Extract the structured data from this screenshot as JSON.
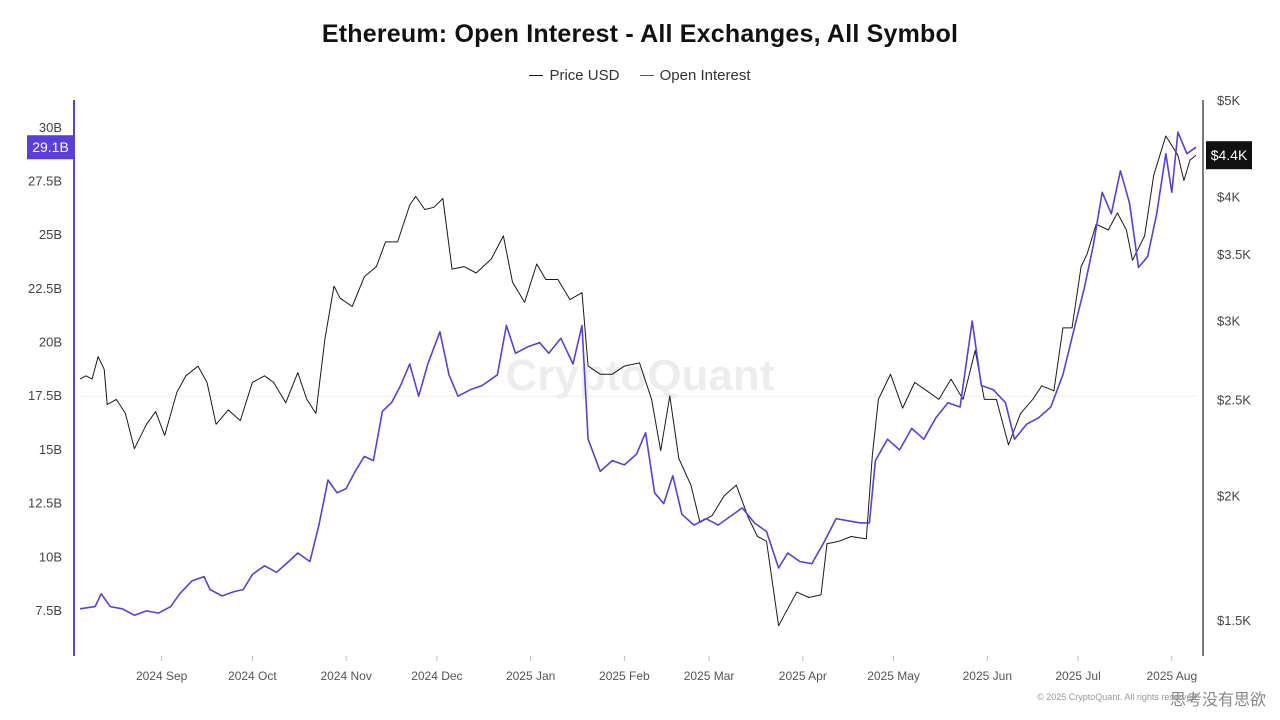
{
  "title": "Ethereum: Open Interest - All Exchanges, All Symbol",
  "watermark": "CryptoQuant",
  "source_text": "© 2025 CryptoQuant. All rights reserved.",
  "corner_badge": "思考没有思欲",
  "colors": {
    "price": "#1a1a1a",
    "oi": "#5a3fd8",
    "axis_left": "#5a3fd8",
    "axis_right": "#222222",
    "badge_dark": "#111111"
  },
  "chart_data": {
    "type": "line",
    "legend": [
      "Price USD",
      "Open Interest"
    ],
    "left_axis": {
      "ticks": [
        "7.5B",
        "10B",
        "12.5B",
        "15B",
        "17.5B",
        "20B",
        "22.5B",
        "25B",
        "27.5B",
        "30B"
      ],
      "tick_values": [
        7.5,
        10,
        12.5,
        15,
        17.5,
        20,
        22.5,
        25,
        27.5,
        30
      ],
      "range": [
        5.4,
        31.3
      ],
      "current_label": "29.1B",
      "current_value": 29.1
    },
    "right_axis": {
      "scale": "log",
      "ticks": [
        "$1.5K",
        "$2K",
        "$2.5K",
        "$3K",
        "$3.5K",
        "$4K",
        "$5K"
      ],
      "tick_values": [
        1500,
        2000,
        2500,
        3000,
        3500,
        4000,
        5000
      ],
      "range": [
        1380,
        5000
      ],
      "current_label": "$4.4K",
      "current_value": 4400
    },
    "x_labels": [
      "2024 Sep",
      "2024 Oct",
      "2024 Nov",
      "2024 Dec",
      "2025 Jan",
      "2025 Feb",
      "2025 Mar",
      "2025 Apr",
      "2025 May",
      "2025 Jun",
      "2025 Jul",
      "2025 Aug"
    ],
    "x_range": [
      "2024-08-19",
      "2025-08-23"
    ],
    "grid": false,
    "legend_position": "top-center",
    "series": [
      {
        "name": "Price USD",
        "axis": "right",
        "points": [
          [
            "2024-08-19",
            2620
          ],
          [
            "2024-08-21",
            2640
          ],
          [
            "2024-08-23",
            2620
          ],
          [
            "2024-08-25",
            2760
          ],
          [
            "2024-08-27",
            2680
          ],
          [
            "2024-08-28",
            2470
          ],
          [
            "2024-08-31",
            2500
          ],
          [
            "2024-09-03",
            2420
          ],
          [
            "2024-09-06",
            2230
          ],
          [
            "2024-09-10",
            2360
          ],
          [
            "2024-09-13",
            2430
          ],
          [
            "2024-09-16",
            2300
          ],
          [
            "2024-09-20",
            2540
          ],
          [
            "2024-09-23",
            2640
          ],
          [
            "2024-09-27",
            2700
          ],
          [
            "2024-09-30",
            2600
          ],
          [
            "2024-10-03",
            2360
          ],
          [
            "2024-10-07",
            2440
          ],
          [
            "2024-10-11",
            2380
          ],
          [
            "2024-10-15",
            2600
          ],
          [
            "2024-10-19",
            2640
          ],
          [
            "2024-10-22",
            2600
          ],
          [
            "2024-10-26",
            2480
          ],
          [
            "2024-10-30",
            2660
          ],
          [
            "2024-11-02",
            2500
          ],
          [
            "2024-11-05",
            2420
          ],
          [
            "2024-11-08",
            2880
          ],
          [
            "2024-11-11",
            3250
          ],
          [
            "2024-11-13",
            3160
          ],
          [
            "2024-11-17",
            3100
          ],
          [
            "2024-11-21",
            3320
          ],
          [
            "2024-11-25",
            3400
          ],
          [
            "2024-11-28",
            3600
          ],
          [
            "2024-12-02",
            3600
          ],
          [
            "2024-12-06",
            3920
          ],
          [
            "2024-12-08",
            4000
          ],
          [
            "2024-12-11",
            3880
          ],
          [
            "2024-12-14",
            3900
          ],
          [
            "2024-12-17",
            3980
          ],
          [
            "2024-12-20",
            3380
          ],
          [
            "2024-12-24",
            3400
          ],
          [
            "2024-12-28",
            3350
          ],
          [
            "2025-01-02",
            3460
          ],
          [
            "2025-01-06",
            3650
          ],
          [
            "2025-01-09",
            3280
          ],
          [
            "2025-01-13",
            3130
          ],
          [
            "2025-01-17",
            3420
          ],
          [
            "2025-01-20",
            3300
          ],
          [
            "2025-01-24",
            3300
          ],
          [
            "2025-01-28",
            3150
          ],
          [
            "2025-02-01",
            3200
          ],
          [
            "2025-02-03",
            2700
          ],
          [
            "2025-02-07",
            2650
          ],
          [
            "2025-02-11",
            2650
          ],
          [
            "2025-02-15",
            2700
          ],
          [
            "2025-02-20",
            2720
          ],
          [
            "2025-02-24",
            2500
          ],
          [
            "2025-02-27",
            2220
          ],
          [
            "2025-03-02",
            2520
          ],
          [
            "2025-03-05",
            2180
          ],
          [
            "2025-03-09",
            2050
          ],
          [
            "2025-03-12",
            1880
          ],
          [
            "2025-03-16",
            1910
          ],
          [
            "2025-03-20",
            2000
          ],
          [
            "2025-03-24",
            2050
          ],
          [
            "2025-03-28",
            1900
          ],
          [
            "2025-03-31",
            1820
          ],
          [
            "2025-04-03",
            1800
          ],
          [
            "2025-04-07",
            1480
          ],
          [
            "2025-04-09",
            1520
          ],
          [
            "2025-04-13",
            1600
          ],
          [
            "2025-04-17",
            1580
          ],
          [
            "2025-04-21",
            1590
          ],
          [
            "2025-04-23",
            1790
          ],
          [
            "2025-04-27",
            1800
          ],
          [
            "2025-05-01",
            1820
          ],
          [
            "2025-05-06",
            1810
          ],
          [
            "2025-05-08",
            2200
          ],
          [
            "2025-05-10",
            2500
          ],
          [
            "2025-05-14",
            2650
          ],
          [
            "2025-05-18",
            2450
          ],
          [
            "2025-05-22",
            2600
          ],
          [
            "2025-05-26",
            2550
          ],
          [
            "2025-05-30",
            2500
          ],
          [
            "2025-06-03",
            2620
          ],
          [
            "2025-06-07",
            2500
          ],
          [
            "2025-06-11",
            2800
          ],
          [
            "2025-06-14",
            2500
          ],
          [
            "2025-06-18",
            2500
          ],
          [
            "2025-06-22",
            2250
          ],
          [
            "2025-06-26",
            2420
          ],
          [
            "2025-06-30",
            2500
          ],
          [
            "2025-07-03",
            2580
          ],
          [
            "2025-07-07",
            2550
          ],
          [
            "2025-07-10",
            2950
          ],
          [
            "2025-07-13",
            2950
          ],
          [
            "2025-07-16",
            3400
          ],
          [
            "2025-07-18",
            3500
          ],
          [
            "2025-07-21",
            3750
          ],
          [
            "2025-07-25",
            3700
          ],
          [
            "2025-07-28",
            3850
          ],
          [
            "2025-07-31",
            3700
          ],
          [
            "2025-08-02",
            3450
          ],
          [
            "2025-08-06",
            3650
          ],
          [
            "2025-08-09",
            4200
          ],
          [
            "2025-08-13",
            4600
          ],
          [
            "2025-08-15",
            4500
          ],
          [
            "2025-08-17",
            4400
          ],
          [
            "2025-08-19",
            4150
          ],
          [
            "2025-08-21",
            4350
          ],
          [
            "2025-08-23",
            4400
          ]
        ]
      },
      {
        "name": "Open Interest",
        "axis": "left",
        "points": [
          [
            "2024-08-19",
            7.6
          ],
          [
            "2024-08-24",
            7.7
          ],
          [
            "2024-08-26",
            8.3
          ],
          [
            "2024-08-29",
            7.7
          ],
          [
            "2024-09-02",
            7.6
          ],
          [
            "2024-09-06",
            7.3
          ],
          [
            "2024-09-10",
            7.5
          ],
          [
            "2024-09-14",
            7.4
          ],
          [
            "2024-09-18",
            7.7
          ],
          [
            "2024-09-21",
            8.3
          ],
          [
            "2024-09-25",
            8.9
          ],
          [
            "2024-09-29",
            9.1
          ],
          [
            "2024-10-01",
            8.5
          ],
          [
            "2024-10-05",
            8.2
          ],
          [
            "2024-10-09",
            8.4
          ],
          [
            "2024-10-12",
            8.5
          ],
          [
            "2024-10-15",
            9.2
          ],
          [
            "2024-10-19",
            9.6
          ],
          [
            "2024-10-23",
            9.3
          ],
          [
            "2024-10-27",
            9.8
          ],
          [
            "2024-10-30",
            10.2
          ],
          [
            "2024-11-03",
            9.8
          ],
          [
            "2024-11-06",
            11.5
          ],
          [
            "2024-11-09",
            13.6
          ],
          [
            "2024-11-12",
            13.0
          ],
          [
            "2024-11-15",
            13.2
          ],
          [
            "2024-11-18",
            14.0
          ],
          [
            "2024-11-21",
            14.7
          ],
          [
            "2024-11-24",
            14.5
          ],
          [
            "2024-11-27",
            16.8
          ],
          [
            "2024-11-30",
            17.2
          ],
          [
            "2024-12-03",
            18.0
          ],
          [
            "2024-12-06",
            19.0
          ],
          [
            "2024-12-09",
            17.5
          ],
          [
            "2024-12-12",
            19.0
          ],
          [
            "2024-12-16",
            20.5
          ],
          [
            "2024-12-19",
            18.5
          ],
          [
            "2024-12-22",
            17.5
          ],
          [
            "2024-12-26",
            17.8
          ],
          [
            "2024-12-30",
            18.0
          ],
          [
            "2025-01-04",
            18.5
          ],
          [
            "2025-01-07",
            20.8
          ],
          [
            "2025-01-10",
            19.5
          ],
          [
            "2025-01-14",
            19.8
          ],
          [
            "2025-01-18",
            20.0
          ],
          [
            "2025-01-21",
            19.5
          ],
          [
            "2025-01-25",
            20.2
          ],
          [
            "2025-01-29",
            19.0
          ],
          [
            "2025-02-01",
            20.8
          ],
          [
            "2025-02-03",
            15.5
          ],
          [
            "2025-02-07",
            14.0
          ],
          [
            "2025-02-11",
            14.5
          ],
          [
            "2025-02-15",
            14.3
          ],
          [
            "2025-02-19",
            14.8
          ],
          [
            "2025-02-22",
            15.8
          ],
          [
            "2025-02-25",
            13.0
          ],
          [
            "2025-02-28",
            12.5
          ],
          [
            "2025-03-03",
            13.8
          ],
          [
            "2025-03-06",
            12.0
          ],
          [
            "2025-03-10",
            11.5
          ],
          [
            "2025-03-14",
            11.8
          ],
          [
            "2025-03-18",
            11.5
          ],
          [
            "2025-03-22",
            11.9
          ],
          [
            "2025-03-26",
            12.3
          ],
          [
            "2025-03-30",
            11.6
          ],
          [
            "2025-04-03",
            11.2
          ],
          [
            "2025-04-07",
            9.5
          ],
          [
            "2025-04-10",
            10.2
          ],
          [
            "2025-04-14",
            9.8
          ],
          [
            "2025-04-18",
            9.7
          ],
          [
            "2025-04-22",
            10.7
          ],
          [
            "2025-04-26",
            11.8
          ],
          [
            "2025-04-30",
            11.7
          ],
          [
            "2025-05-04",
            11.6
          ],
          [
            "2025-05-07",
            11.6
          ],
          [
            "2025-05-09",
            14.5
          ],
          [
            "2025-05-13",
            15.5
          ],
          [
            "2025-05-17",
            15.0
          ],
          [
            "2025-05-21",
            16.0
          ],
          [
            "2025-05-25",
            15.5
          ],
          [
            "2025-05-29",
            16.5
          ],
          [
            "2025-06-02",
            17.2
          ],
          [
            "2025-06-06",
            17.0
          ],
          [
            "2025-06-10",
            21.0
          ],
          [
            "2025-06-13",
            18.0
          ],
          [
            "2025-06-17",
            17.8
          ],
          [
            "2025-06-21",
            17.2
          ],
          [
            "2025-06-24",
            15.5
          ],
          [
            "2025-06-28",
            16.2
          ],
          [
            "2025-07-02",
            16.5
          ],
          [
            "2025-07-06",
            17.0
          ],
          [
            "2025-07-10",
            18.5
          ],
          [
            "2025-07-14",
            20.8
          ],
          [
            "2025-07-17",
            22.5
          ],
          [
            "2025-07-20",
            24.5
          ],
          [
            "2025-07-23",
            27.0
          ],
          [
            "2025-07-26",
            26.0
          ],
          [
            "2025-07-29",
            28.0
          ],
          [
            "2025-08-01",
            26.5
          ],
          [
            "2025-08-04",
            23.5
          ],
          [
            "2025-08-07",
            24.0
          ],
          [
            "2025-08-10",
            26.0
          ],
          [
            "2025-08-13",
            28.8
          ],
          [
            "2025-08-15",
            27.0
          ],
          [
            "2025-08-17",
            29.8
          ],
          [
            "2025-08-20",
            28.8
          ],
          [
            "2025-08-23",
            29.1
          ]
        ]
      }
    ]
  }
}
